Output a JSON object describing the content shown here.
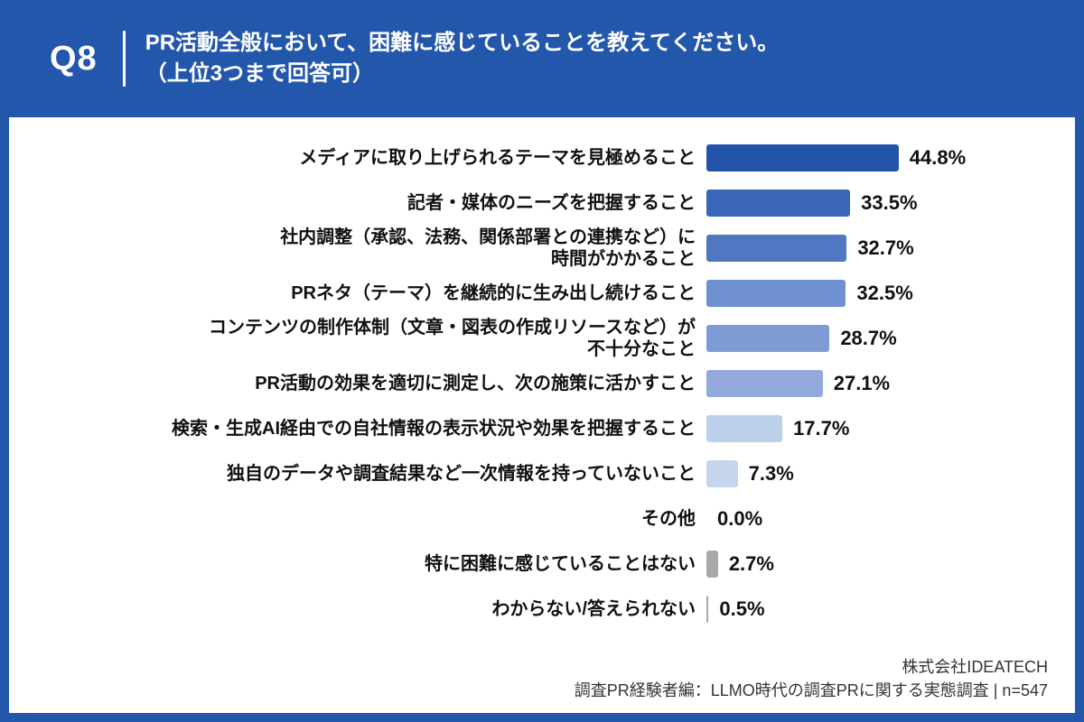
{
  "header": {
    "q_label": "Q8",
    "title_line1": "PR活動全般において、困難に感じていることを教えてください。",
    "title_line2": "（上位3つまで回答可）"
  },
  "chart_data": {
    "type": "bar",
    "orientation": "horizontal",
    "title": "PR活動全般において、困難に感じていること（上位3つまで回答可）",
    "xlabel": "",
    "ylabel": "",
    "unit": "%",
    "xlim": [
      0,
      50
    ],
    "grid": false,
    "legend": false,
    "categories": [
      "メディアに取り上げられるテーマを見極めること",
      "記者・媒体のニーズを把握すること",
      "社内調整（承認、法務、関係部署との連携など）に\n時間がかかること",
      "PRネタ（テーマ）を継続的に生み出し続けること",
      "コンテンツの制作体制（文章・図表の作成リソースなど）が\n不十分なこと",
      "PR活動の効果を適切に測定し、次の施策に活かすこと",
      "検索・生成AI経由での自社情報の表示状況や効果を把握すること",
      "独自のデータや調査結果など一次情報を持っていないこと",
      "その他",
      "特に困難に感じていることはない",
      "わからない/答えられない"
    ],
    "values": [
      44.8,
      33.5,
      32.7,
      32.5,
      28.7,
      27.1,
      17.7,
      7.3,
      0.0,
      2.7,
      0.5
    ],
    "value_labels": [
      "44.8%",
      "33.5%",
      "32.7%",
      "32.5%",
      "28.7%",
      "27.1%",
      "17.7%",
      "7.3%",
      "0.0%",
      "2.7%",
      "0.5%"
    ],
    "bar_colors": [
      "#2154A8",
      "#3A66B8",
      "#4F77C2",
      "#6E90D0",
      "#7F9BD6",
      "#93A9DC",
      "#BDD0EA",
      "#C6D5EE",
      "#A9A9A9",
      "#A9A9A9",
      "#A9A9A9"
    ]
  },
  "footer": {
    "company": "株式会社IDEATECH",
    "source": "調査PR経験者編：LLMO時代の調査PRに関する実態調査 | n=547"
  },
  "colors": {
    "frame_blue": "#2357AC",
    "panel_white": "#ffffff",
    "label_text": "#111111",
    "footer_text": "#333333",
    "gray_bar": "#A9A9A9"
  }
}
